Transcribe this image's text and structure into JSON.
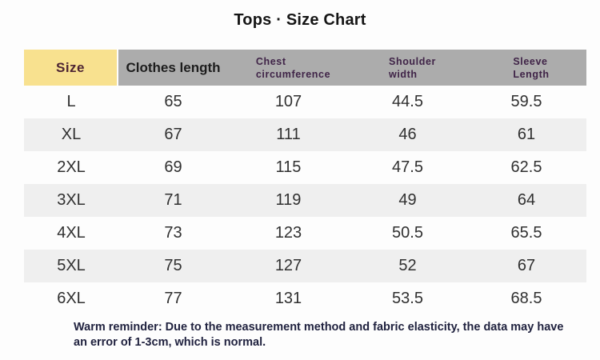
{
  "title": "Tops · Size Chart",
  "table": {
    "columns": [
      {
        "label": "Size"
      },
      {
        "label": "Clothes length"
      },
      {
        "label": "Chest circumference",
        "lines": [
          "Chest",
          "circumference"
        ]
      },
      {
        "label": "Shoulder width",
        "lines": [
          "Shoulder",
          "width"
        ]
      },
      {
        "label": "Sleeve Length",
        "lines": [
          "Sleeve",
          "Length"
        ]
      }
    ],
    "rows": [
      {
        "size": "L",
        "values": [
          "65",
          "107",
          "44.5",
          "59.5"
        ]
      },
      {
        "size": "XL",
        "values": [
          "67",
          "111",
          "46",
          "61"
        ]
      },
      {
        "size": "2XL",
        "values": [
          "69",
          "115",
          "47.5",
          "62.5"
        ]
      },
      {
        "size": "3XL",
        "values": [
          "71",
          "119",
          "49",
          "64"
        ]
      },
      {
        "size": "4XL",
        "values": [
          "73",
          "123",
          "50.5",
          "65.5"
        ]
      },
      {
        "size": "5XL",
        "values": [
          "75",
          "127",
          "52",
          "67"
        ]
      },
      {
        "size": "6XL",
        "values": [
          "77",
          "131",
          "53.5",
          "68.5"
        ]
      }
    ]
  },
  "footer": {
    "lines": [
      "Warm reminder: Due to the measurement method and fabric elasticity, the data may have",
      "an error of 1-3cm, which is normal."
    ]
  },
  "chart_data": {
    "type": "table",
    "title": "Tops · Size Chart",
    "columns": [
      "Size",
      "Clothes length",
      "Chest circumference",
      "Shoulder width",
      "Sleeve Length"
    ],
    "rows": [
      [
        "L",
        65,
        107,
        44.5,
        59.5
      ],
      [
        "XL",
        67,
        111,
        46,
        61
      ],
      [
        "2XL",
        69,
        115,
        47.5,
        62.5
      ],
      [
        "3XL",
        71,
        119,
        49,
        64
      ],
      [
        "4XL",
        73,
        123,
        50.5,
        65.5
      ],
      [
        "5XL",
        75,
        127,
        52,
        67
      ],
      [
        "6XL",
        77,
        131,
        53.5,
        68.5
      ]
    ]
  },
  "colors": {
    "size_header_bg": "#f8e18f",
    "header_bg": "#acacac",
    "alt_row_bg": "#efefef",
    "size_header_text": "#4d2433",
    "subheader_text": "#3f2347",
    "footer_text": "#20223f"
  }
}
